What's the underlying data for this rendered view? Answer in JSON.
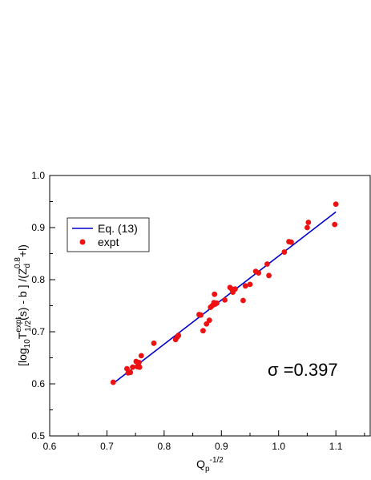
{
  "chart_data": {
    "type": "scatter",
    "xlabel": {
      "main": "Q",
      "sub": "p",
      "sup": "-1/2"
    },
    "ylabel": {
      "p1": "[log",
      "s1": "10",
      "p2": "T",
      "sup1": "expt",
      "sub2": "1/2",
      "p3": "(s) - b ] /(Z",
      "sub3": "d",
      "sup3": "0.8",
      "p4": "+l)"
    },
    "xlim": [
      0.6,
      1.16
    ],
    "ylim": [
      0.5,
      1.0
    ],
    "xticks": [
      "0.6",
      "0.7",
      "0.8",
      "0.9",
      "1.0",
      "1.1"
    ],
    "yticks": [
      "0.5",
      "0.6",
      "0.7",
      "0.8",
      "0.9",
      "1.0"
    ],
    "legend_position": "upper-left",
    "annotation": "σ =0.397",
    "colors": {
      "line": "#0000cc",
      "points": "#ee1111",
      "axes": "#000000"
    },
    "series": [
      {
        "name": "Eq. (13)",
        "kind": "line",
        "x": [
          0.71,
          1.1
        ],
        "y": [
          0.6,
          0.93
        ]
      },
      {
        "name": "expt",
        "kind": "scatter",
        "x": [
          0.711,
          0.735,
          0.737,
          0.741,
          0.745,
          0.751,
          0.753,
          0.756,
          0.757,
          0.76,
          0.782,
          0.82,
          0.823,
          0.825,
          0.861,
          0.864,
          0.868,
          0.874,
          0.879,
          0.881,
          0.884,
          0.887,
          0.888,
          0.889,
          0.892,
          0.906,
          0.915,
          0.918,
          0.92,
          0.924,
          0.938,
          0.942,
          0.95,
          0.96,
          0.965,
          0.98,
          0.983,
          1.01,
          1.018,
          1.022,
          1.05,
          1.052,
          1.098,
          1.1
        ],
        "y": [
          0.603,
          0.629,
          0.621,
          0.622,
          0.632,
          0.643,
          0.633,
          0.641,
          0.632,
          0.654,
          0.678,
          0.685,
          0.69,
          0.693,
          0.733,
          0.732,
          0.702,
          0.715,
          0.722,
          0.747,
          0.75,
          0.756,
          0.772,
          0.753,
          0.755,
          0.761,
          0.785,
          0.782,
          0.776,
          0.782,
          0.76,
          0.788,
          0.791,
          0.816,
          0.813,
          0.83,
          0.808,
          0.853,
          0.873,
          0.872,
          0.9,
          0.91,
          0.906,
          0.945
        ]
      }
    ]
  }
}
